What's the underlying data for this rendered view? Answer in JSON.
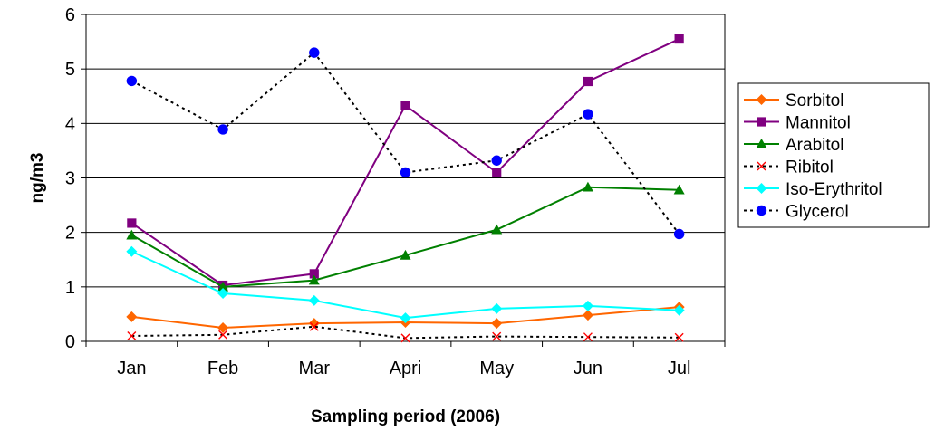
{
  "chart_data": {
    "type": "line",
    "title": "",
    "xlabel": "Sampling period (2006)",
    "ylabel": "ng/m3",
    "ylim": [
      0,
      6
    ],
    "yticks": [
      0,
      1,
      2,
      3,
      4,
      5,
      6
    ],
    "grid": true,
    "legend_position": "right",
    "categories": [
      "Jan",
      "Feb",
      "Mar",
      "Apri",
      "May",
      "Jun",
      "Jul"
    ],
    "series": [
      {
        "name": "Sorbitol",
        "color": "#FF6600",
        "marker": "diamond",
        "dash": "solid",
        "values": [
          0.45,
          0.25,
          0.33,
          0.35,
          0.33,
          0.48,
          0.63
        ]
      },
      {
        "name": "Mannitol",
        "color": "#800080",
        "marker": "square",
        "dash": "solid",
        "values": [
          2.17,
          1.03,
          1.24,
          4.33,
          3.1,
          4.77,
          5.55
        ]
      },
      {
        "name": "Arabitol",
        "color": "#008000",
        "marker": "triangle",
        "dash": "solid",
        "values": [
          1.95,
          1.0,
          1.12,
          1.58,
          2.05,
          2.83,
          2.78
        ]
      },
      {
        "name": "Ribitol",
        "color": "#000000",
        "marker": "x",
        "marker_color": "#FF0000",
        "dash": "dotted",
        "values": [
          0.1,
          0.12,
          0.27,
          0.06,
          0.09,
          0.08,
          0.07
        ]
      },
      {
        "name": "Iso-Erythritol",
        "color": "#00FFFF",
        "marker": "diamond",
        "dash": "solid",
        "values": [
          1.65,
          0.88,
          0.75,
          0.43,
          0.6,
          0.65,
          0.57
        ]
      },
      {
        "name": "Glycerol",
        "color": "#000000",
        "marker": "circle",
        "marker_color": "#0000FF",
        "dash": "dotted",
        "values": [
          4.78,
          3.89,
          5.3,
          3.1,
          3.32,
          4.17,
          1.97
        ]
      }
    ]
  }
}
